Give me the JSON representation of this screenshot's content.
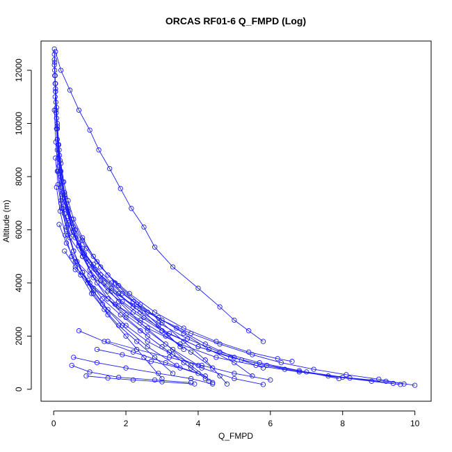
{
  "chart_data": {
    "type": "line",
    "title": "ORCAS RF01-6 Q_FMPD (Log)",
    "xlabel": "Q_FMPD",
    "ylabel": "Altitude (m)",
    "xlim": [
      -0.35,
      10.45
    ],
    "ylim": [
      -450,
      13100
    ],
    "xticks": [
      0,
      2,
      4,
      6,
      8,
      10
    ],
    "yticks": [
      0,
      2000,
      4000,
      6000,
      8000,
      10000,
      12000
    ],
    "xtick_labels": [
      "0",
      "2",
      "4",
      "6",
      "8",
      "10"
    ],
    "ytick_labels": [
      "0",
      "2000",
      "4000",
      "6000",
      "8000",
      "10000",
      "12000"
    ],
    "grid": false,
    "legend": "none",
    "marker": "open-circle",
    "line_color": "#1a1aff",
    "series": [
      {
        "x": [
          0.02,
          0.03,
          0.04,
          0.05,
          0.06,
          0.1,
          0.15,
          0.2,
          0.3,
          0.4,
          0.6,
          0.9,
          1.3,
          1.8,
          2.4,
          3.0,
          3.6,
          4.2,
          4.6,
          4.8
        ],
        "y": [
          12800,
          12300,
          11800,
          11200,
          10500,
          9800,
          9000,
          8200,
          7400,
          6700,
          6000,
          5300,
          4600,
          3900,
          3200,
          2500,
          1800,
          1100,
          500,
          200
        ]
      },
      {
        "x": [
          0.02,
          0.03,
          0.05,
          0.08,
          0.1,
          0.14,
          0.2,
          0.28,
          0.4,
          0.55,
          0.8,
          1.1,
          1.5,
          2.1,
          2.8,
          3.6,
          4.5,
          5.4,
          6.2,
          6.6
        ],
        "y": [
          12600,
          12000,
          11300,
          10600,
          9900,
          9200,
          8500,
          7800,
          7100,
          6400,
          5700,
          5000,
          4300,
          3600,
          2900,
          2300,
          1800,
          1400,
          1150,
          1050
        ]
      },
      {
        "x": [
          0.05,
          0.2,
          0.45,
          0.7,
          1.0,
          1.25,
          1.55,
          1.85,
          2.15,
          2.5,
          2.8,
          3.3,
          4.0,
          4.6,
          5.0,
          5.4,
          5.8
        ],
        "y": [
          12700,
          12000,
          11250,
          10500,
          9750,
          9000,
          8300,
          7550,
          6800,
          6100,
          5350,
          4600,
          3800,
          3100,
          2600,
          2200,
          1800
        ]
      },
      {
        "x": [
          0.02,
          0.04,
          0.07,
          0.1,
          0.15,
          0.25,
          0.4,
          0.6,
          0.9,
          1.3,
          1.8,
          2.4,
          3.1,
          3.8,
          4.4
        ],
        "y": [
          12400,
          11500,
          10400,
          9400,
          8400,
          7400,
          6500,
          5700,
          4900,
          4100,
          3300,
          2500,
          1700,
          900,
          250
        ]
      },
      {
        "x": [
          0.02,
          0.05,
          0.08,
          0.12,
          0.18,
          0.3,
          0.45,
          0.7,
          1.0,
          1.5,
          2.2,
          3.0,
          4.0,
          5.2,
          6.4,
          7.6,
          8.8,
          9.6
        ],
        "y": [
          12200,
          11200,
          10200,
          9200,
          8200,
          7200,
          6300,
          5400,
          4500,
          3700,
          2900,
          2200,
          1600,
          1100,
          750,
          500,
          300,
          180
        ]
      },
      {
        "x": [
          0.03,
          0.06,
          0.1,
          0.16,
          0.25,
          0.38,
          0.55,
          0.8,
          1.1,
          1.5,
          2.0,
          2.6,
          3.2,
          3.8,
          4.3
        ],
        "y": [
          11800,
          10800,
          9800,
          8800,
          7800,
          6800,
          5900,
          5000,
          4200,
          3400,
          2700,
          2000,
          1400,
          800,
          300
        ]
      },
      {
        "x": [
          0.04,
          0.08,
          0.13,
          0.2,
          0.3,
          0.45,
          0.65,
          0.95,
          1.35,
          1.9,
          2.6,
          3.4
        ],
        "y": [
          11000,
          9800,
          8700,
          7600,
          6600,
          5700,
          4800,
          4000,
          3200,
          2400,
          1600,
          900
        ]
      },
      {
        "x": [
          0.05,
          0.1,
          0.18,
          0.3,
          0.5,
          0.8,
          1.2,
          1.8,
          2.6,
          3.5,
          4.5,
          5.6,
          6.8,
          8.0,
          9.2,
          10.0
        ],
        "y": [
          11500,
          10000,
          8600,
          7300,
          6100,
          5000,
          4000,
          3100,
          2300,
          1700,
          1200,
          900,
          650,
          450,
          300,
          150
        ]
      },
      {
        "x": [
          0.02,
          0.06,
          0.12,
          0.2,
          0.35,
          0.55,
          0.8,
          1.1,
          1.5,
          2.0,
          2.5,
          3.0
        ],
        "y": [
          10500,
          9300,
          8200,
          7100,
          6100,
          5200,
          4400,
          3600,
          2800,
          2000,
          1200,
          400
        ]
      },
      {
        "x": [
          0.1,
          0.2,
          0.35,
          0.55,
          0.8,
          1.15,
          1.6,
          2.2,
          2.9,
          3.7,
          4.6,
          5.7,
          6.8,
          7.9
        ],
        "y": [
          9000,
          8000,
          7000,
          6100,
          5300,
          4500,
          3800,
          3100,
          2500,
          1900,
          1400,
          1000,
          700,
          400
        ]
      },
      {
        "x": [
          0.05,
          0.12,
          0.22,
          0.36,
          0.55,
          0.8,
          1.1,
          1.5,
          2.0,
          2.6,
          3.3,
          4.1,
          5.0,
          5.8
        ],
        "y": [
          8700,
          7700,
          6800,
          6000,
          5200,
          4400,
          3700,
          3000,
          2400,
          1800,
          1300,
          800,
          400,
          180
        ]
      },
      {
        "x": [
          0.1,
          0.25,
          0.45,
          0.7,
          1.0,
          1.4,
          1.9,
          2.5,
          3.2,
          4.0,
          4.9,
          5.9,
          7.0,
          8.2,
          9.4
        ],
        "y": [
          8200,
          7200,
          6300,
          5500,
          4700,
          4000,
          3300,
          2700,
          2100,
          1600,
          1200,
          900,
          650,
          420,
          220
        ]
      },
      {
        "x": [
          0.3,
          0.6,
          1.0,
          1.5,
          2.0,
          2.6,
          3.3,
          4.0
        ],
        "y": [
          5200,
          4600,
          4000,
          3400,
          2800,
          2200,
          1500,
          900
        ]
      },
      {
        "x": [
          0.15,
          0.35,
          0.6,
          0.95,
          1.35,
          1.85,
          2.4,
          3.0,
          3.6,
          4.2
        ],
        "y": [
          6200,
          5500,
          4800,
          4100,
          3400,
          2800,
          2200,
          1600,
          1000,
          400
        ]
      },
      {
        "x": [
          0.2,
          0.4,
          0.7,
          1.1,
          1.6,
          2.2,
          2.9,
          3.6,
          4.3,
          5.0,
          5.5
        ],
        "y": [
          7000,
          6200,
          5400,
          4700,
          4000,
          3300,
          2700,
          2100,
          1500,
          1000,
          500
        ]
      },
      {
        "x": [
          0.25,
          0.5,
          0.85,
          1.3,
          1.8,
          2.4,
          3.0,
          3.6
        ],
        "y": [
          6800,
          5900,
          5100,
          4300,
          3600,
          2900,
          2200,
          1500
        ]
      },
      {
        "x": [
          0.4,
          0.8,
          1.3,
          1.9,
          2.6,
          3.4,
          4.2,
          5.0,
          5.8
        ],
        "y": [
          5800,
          5000,
          4300,
          3600,
          2900,
          2300,
          1700,
          1200,
          800
        ]
      },
      {
        "x": [
          0.08,
          0.18,
          0.32,
          0.5,
          0.75,
          1.05,
          1.4,
          1.8,
          2.3,
          2.8,
          3.3
        ],
        "y": [
          7600,
          6700,
          5800,
          5000,
          4300,
          3600,
          3000,
          2400,
          1800,
          1200,
          600
        ]
      },
      {
        "x": [
          0.5,
          1.0,
          1.6,
          2.3,
          3.0,
          3.8,
          4.6,
          5.5,
          6.3,
          7.2,
          8.1,
          9.0,
          9.7
        ],
        "y": [
          5000,
          4300,
          3700,
          3100,
          2600,
          2100,
          1700,
          1300,
          1000,
          750,
          550,
          380,
          200
        ]
      },
      {
        "x": [
          0.6,
          1.1,
          1.7,
          2.4,
          3.1,
          3.8,
          4.4
        ],
        "y": [
          4500,
          3800,
          3200,
          2600,
          2000,
          1400,
          800
        ]
      },
      {
        "x": [
          0.5,
          1.0,
          1.8,
          2.8,
          3.8
        ],
        "y": [
          900,
          650,
          450,
          350,
          250
        ]
      },
      {
        "x": [
          0.9,
          1.5,
          2.2,
          3.0,
          3.9
        ],
        "y": [
          500,
          420,
          350,
          280,
          200
        ]
      },
      {
        "x": [
          0.55,
          1.2,
          2.0,
          2.9,
          3.8,
          4.4
        ],
        "y": [
          1200,
          1000,
          800,
          600,
          400,
          200
        ]
      },
      {
        "x": [
          1.2,
          1.9,
          2.7,
          3.5,
          4.2
        ],
        "y": [
          1500,
          1300,
          1050,
          800,
          500
        ]
      },
      {
        "x": [
          0.7,
          1.4,
          2.2,
          3.1,
          4.0
        ],
        "y": [
          2200,
          1800,
          1400,
          1000,
          600
        ]
      },
      {
        "x": [
          1.5,
          2.3,
          3.2,
          4.1,
          5.0,
          6.0
        ],
        "y": [
          1800,
          1500,
          1200,
          900,
          600,
          350
        ]
      },
      {
        "x": [
          0.3,
          0.5,
          0.8,
          1.2,
          1.7,
          2.3,
          2.9,
          3.5
        ],
        "y": [
          7300,
          6400,
          5600,
          4800,
          4000,
          3200,
          2400,
          1600
        ]
      }
    ]
  }
}
